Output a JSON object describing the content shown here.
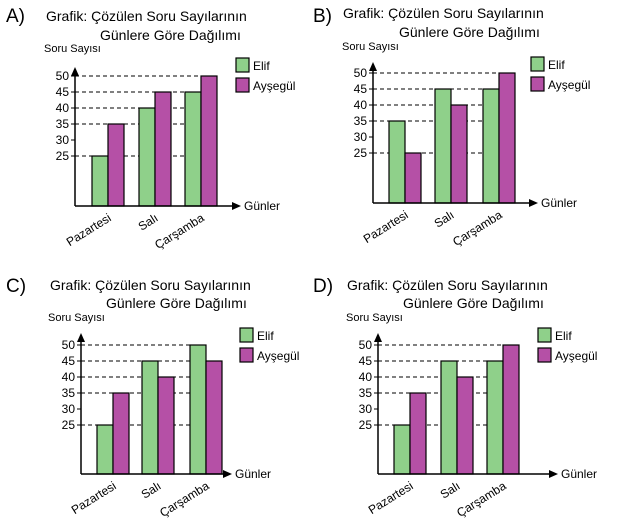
{
  "colors": {
    "elif": "#8fd08a",
    "aysegul": "#b550a6",
    "axis": "#000000"
  },
  "chart_data": [
    {
      "type": "bar",
      "option": "A)",
      "title_line1": "Grafik: Çözülen Soru Sayılarının",
      "title_line2": "Günlere Göre Dağılımı",
      "ylabel": "Soru Sayısı",
      "xlabel": "Günler",
      "categories": [
        "Pazartesi",
        "Salı",
        "Çarşamba"
      ],
      "yticks": [
        "25",
        "30",
        "35",
        "40",
        "45",
        "50"
      ],
      "ylim": [
        25,
        50
      ],
      "series": [
        {
          "name": "Elif",
          "values": [
            25,
            40,
            45
          ]
        },
        {
          "name": "Ayşegül",
          "values": [
            35,
            45,
            50
          ]
        }
      ]
    },
    {
      "type": "bar",
      "option": "B)",
      "title_line1": "Grafik: Çözülen Soru Sayılarının",
      "title_line2": "Günlere Göre Dağılımı",
      "ylabel": "Soru Sayısı",
      "xlabel": "Günler",
      "categories": [
        "Pazartesi",
        "Salı",
        "Çarşamba"
      ],
      "yticks": [
        "25",
        "30",
        "35",
        "40",
        "45",
        "50"
      ],
      "ylim": [
        25,
        50
      ],
      "series": [
        {
          "name": "Elif",
          "values": [
            35,
            45,
            45
          ]
        },
        {
          "name": "Ayşegül",
          "values": [
            25,
            40,
            50
          ]
        }
      ]
    },
    {
      "type": "bar",
      "option": "C)",
      "title_line1": "Grafik: Çözülen Soru Sayılarının",
      "title_line2": "Günlere Göre Dağılımı",
      "ylabel": "Soru Sayısı",
      "xlabel": "Günler",
      "categories": [
        "Pazartesi",
        "Salı",
        "Çarşamba"
      ],
      "yticks": [
        "25",
        "30",
        "35",
        "40",
        "45",
        "50"
      ],
      "ylim": [
        25,
        50
      ],
      "series": [
        {
          "name": "Elif",
          "values": [
            25,
            45,
            50
          ]
        },
        {
          "name": "Ayşegül",
          "values": [
            35,
            40,
            45
          ]
        }
      ]
    },
    {
      "type": "bar",
      "option": "D)",
      "title_line1": "Grafik: Çözülen Soru Sayılarının",
      "title_line2": "Günlere Göre Dağılımı",
      "ylabel": "Soru Sayısı",
      "xlabel": "Günler",
      "categories": [
        "Pazartesi",
        "Salı",
        "Çarşamba"
      ],
      "yticks": [
        "25",
        "30",
        "35",
        "40",
        "45",
        "50"
      ],
      "ylim": [
        25,
        50
      ],
      "series": [
        {
          "name": "Elif",
          "values": [
            25,
            45,
            45
          ]
        },
        {
          "name": "Ayşegül",
          "values": [
            35,
            40,
            50
          ]
        }
      ]
    }
  ]
}
